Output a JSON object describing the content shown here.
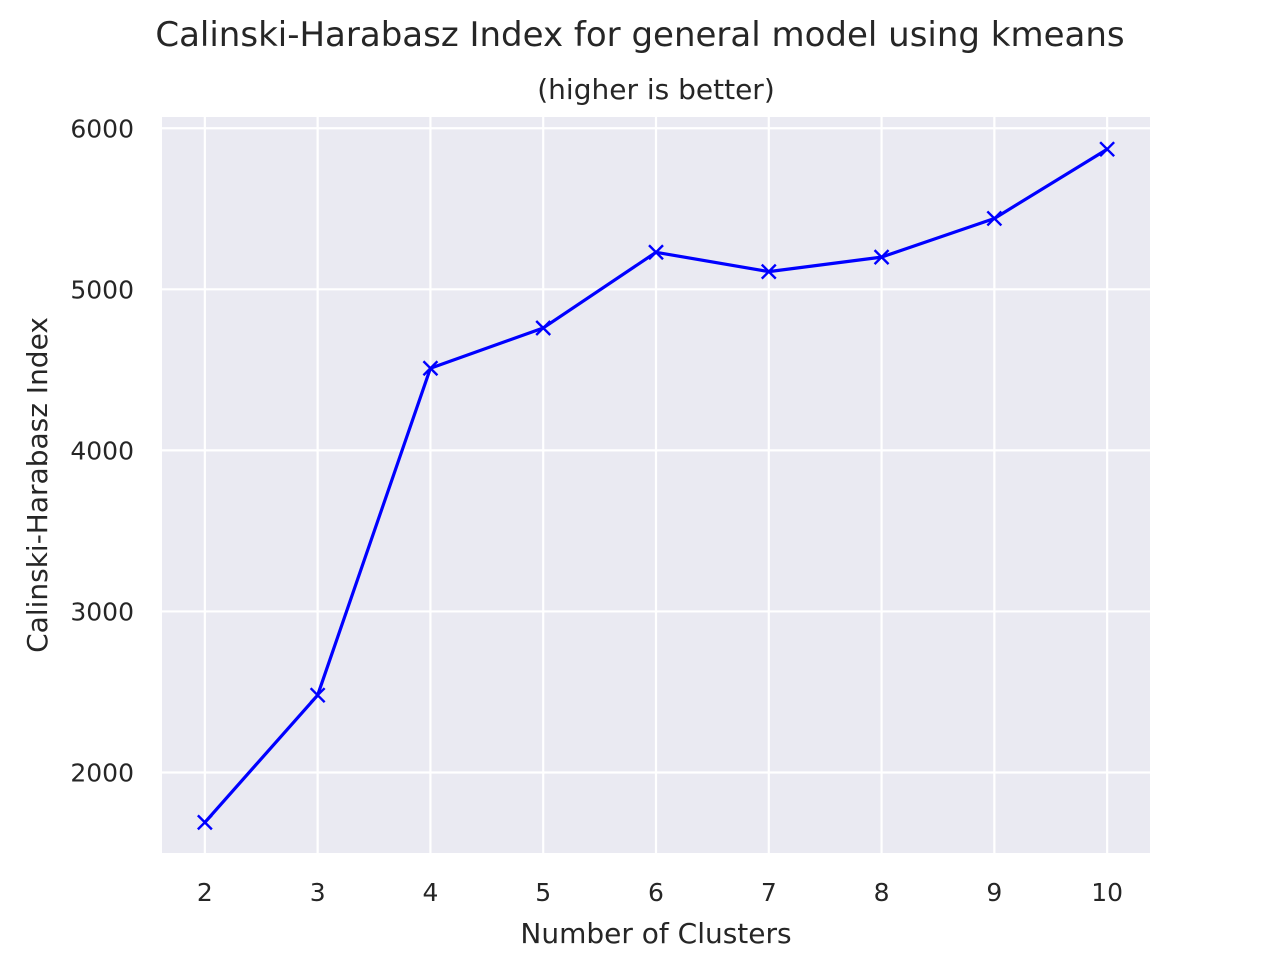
{
  "chart_data": {
    "type": "line",
    "title": "Calinski-Harabasz Index for general model using kmeans",
    "subtitle": "(higher is better)",
    "xlabel": "Number of Clusters",
    "ylabel": "Calinski-Harabasz Index",
    "x": [
      2,
      3,
      4,
      5,
      6,
      7,
      8,
      9,
      10
    ],
    "xticks": [
      "2",
      "3",
      "4",
      "5",
      "6",
      "7",
      "8",
      "9",
      "10"
    ],
    "yticks": [
      2000,
      3000,
      4000,
      5000,
      6000
    ],
    "ytick_labels": [
      "2000",
      "3000",
      "4000",
      "5000",
      "6000"
    ],
    "xlim": [
      1.62,
      10.38
    ],
    "ylim": [
      1500,
      6070
    ],
    "grid": true,
    "series": [
      {
        "values": [
          1690,
          2480,
          4510,
          4760,
          5230,
          5110,
          5200,
          5440,
          5870
        ],
        "color": "#0000ff",
        "marker": "x"
      }
    ],
    "background_color": "#eaeaf2",
    "grid_color": "#ffffff"
  }
}
